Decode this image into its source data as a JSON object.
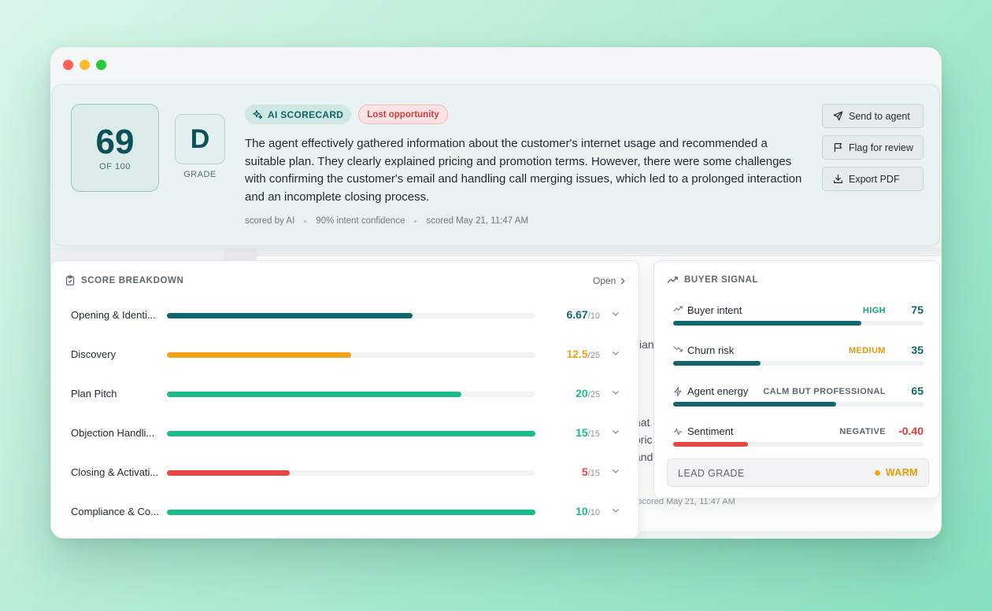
{
  "window": {
    "controls": [
      "close",
      "minimize",
      "maximize"
    ]
  },
  "header": {
    "score": "69",
    "score_of": "OF 100",
    "grade": "D",
    "grade_label": "GRADE",
    "badge_ai": "AI SCORECARD",
    "badge_status": "Lost opportunity",
    "summary": "The agent effectively gathered information about the customer's internet usage and recommended a suitable plan. They clearly explained pricing and promotion terms. However, there were some challenges with confirming the customer's email and handling call merging issues, which led to a prolonged interaction and an incomplete closing process.",
    "meta": [
      "scored by AI",
      "90% intent confidence",
      "scored May 21, 11:47 AM"
    ],
    "actions": {
      "send": "Send to agent",
      "flag": "Flag for review",
      "export": "Export PDF"
    }
  },
  "breakdown": {
    "title": "SCORE BREAKDOWN",
    "open_label": "Open",
    "rows": [
      {
        "label": "Opening & Identi...",
        "score": "6.67",
        "max": "/10",
        "value": 6.67,
        "out_of": 10,
        "color": "#12666d"
      },
      {
        "label": "Discovery",
        "score": "12.5",
        "max": "/25",
        "value": 12.5,
        "out_of": 25,
        "color": "#f2a31b"
      },
      {
        "label": "Plan Pitch",
        "score": "20",
        "max": "/25",
        "value": 20,
        "out_of": 25,
        "color": "#1bbb8a"
      },
      {
        "label": "Objection Handli...",
        "score": "15",
        "max": "/15",
        "value": 15,
        "out_of": 15,
        "color": "#1bbb8a"
      },
      {
        "label": "Closing & Activati...",
        "score": "5",
        "max": "/15",
        "value": 5,
        "out_of": 15,
        "color": "#e84545"
      },
      {
        "label": "Compliance & Co...",
        "score": "10",
        "max": "/10",
        "value": 10,
        "out_of": 10,
        "color": "#1bbb8a"
      }
    ]
  },
  "signal": {
    "title": "BUYER SIGNAL",
    "rows": [
      {
        "label": "Buyer intent",
        "icon": "trend-up-icon",
        "tag": "HIGH",
        "tag_color": "#16a77b",
        "value": "75",
        "value_color": "#12666d",
        "level": 0.75,
        "bar_color": "#12666d"
      },
      {
        "label": "Churn risk",
        "icon": "trend-down-icon",
        "tag": "MEDIUM",
        "tag_color": "#e89a08",
        "value": "35",
        "value_color": "#12666d",
        "level": 0.35,
        "bar_color": "#12666d"
      },
      {
        "label": "Agent energy",
        "icon": "bolt-icon",
        "tag": "CALM BUT PROFESSIONAL",
        "tag_color": "#5c686d",
        "value": "65",
        "value_color": "#12666d",
        "level": 0.65,
        "bar_color": "#12666d"
      },
      {
        "label": "Sentiment",
        "icon": "pulse-icon",
        "tag": "NEGATIVE",
        "tag_color": "#5c686d",
        "value": "-0.40",
        "value_color": "#e03d3d",
        "level": 0.3,
        "bar_color": "#e84545"
      }
    ],
    "lead_label": "LEAD GRADE",
    "lead_value": "WARM"
  },
  "background": {
    "fragments": [
      "nat",
      "oric",
      "and",
      "ian",
      "scored May 21, 11:47 AM"
    ]
  }
}
